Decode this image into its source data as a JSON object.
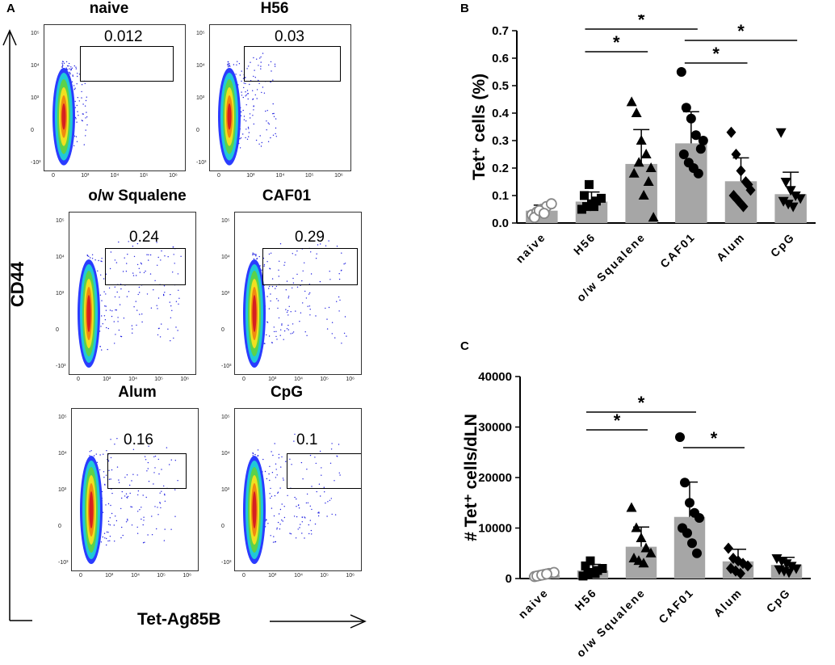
{
  "panel_a": {
    "letter": "A",
    "y_axis_label": "CD44",
    "x_axis_label": "Tet-Ag85B",
    "plots": [
      {
        "title": "naive",
        "gate_value": "0.012"
      },
      {
        "title": "H56",
        "gate_value": "0.03"
      },
      {
        "title": "o/w Squalene",
        "gate_value": "0.24"
      },
      {
        "title": "CAF01",
        "gate_value": "0.29"
      },
      {
        "title": "Alum",
        "gate_value": "0.16"
      },
      {
        "title": "CpG",
        "gate_value": "0.1"
      }
    ],
    "ticks_y": [
      "10⁵",
      "10⁴",
      "10³",
      "0",
      "-10³"
    ],
    "ticks_x": [
      "0",
      "10³",
      "10⁴",
      "10⁵",
      "10⁶"
    ]
  },
  "colors": {
    "bar": "#a6a6a6",
    "density_hot": "#d62020",
    "density_cold": "#2020e0"
  },
  "chart_data": [
    {
      "letter": "B",
      "type": "bar",
      "ylabel": "Tet⁺ cells (%)",
      "ylim": [
        0,
        0.7
      ],
      "yticks": [
        "0.0",
        "0.1",
        "0.2",
        "0.3",
        "0.4",
        "0.5",
        "0.6",
        "0.7"
      ],
      "categories": [
        "naive",
        "H56",
        "o/w Squalene",
        "CAF01",
        "Alum",
        "CpG"
      ],
      "means": [
        0.045,
        0.078,
        0.215,
        0.29,
        0.152,
        0.105
      ],
      "sd": [
        0.02,
        0.035,
        0.125,
        0.115,
        0.085,
        0.08
      ],
      "markers": [
        "circle-open",
        "square",
        "triangle",
        "circle",
        "diamond",
        "triangle-down"
      ],
      "points": [
        [
          0.03,
          0.04,
          0.05,
          0.06,
          0.07,
          0.02,
          0.045,
          0.035
        ],
        [
          0.05,
          0.06,
          0.07,
          0.08,
          0.09,
          0.1,
          0.14,
          0.06
        ],
        [
          0.44,
          0.4,
          0.3,
          0.25,
          0.2,
          0.18,
          0.22,
          0.1,
          0.15,
          0.02
        ],
        [
          0.55,
          0.42,
          0.38,
          0.32,
          0.27,
          0.25,
          0.22,
          0.2,
          0.18,
          0.3
        ],
        [
          0.33,
          0.25,
          0.19,
          0.15,
          0.12,
          0.1,
          0.08,
          0.06,
          0.14
        ],
        [
          0.33,
          0.15,
          0.12,
          0.1,
          0.09,
          0.08,
          0.07,
          0.06
        ]
      ],
      "significance": [
        {
          "from": 1,
          "to": 2,
          "level": 1,
          "label": "*"
        },
        {
          "from": 1,
          "to": 3,
          "level": 3,
          "label": "*"
        },
        {
          "from": 3,
          "to": 4,
          "level": 0,
          "label": "*"
        },
        {
          "from": 3,
          "to": 5,
          "level": 2,
          "label": "*"
        }
      ]
    },
    {
      "letter": "C",
      "type": "bar",
      "ylabel": "# Tet⁺ cells/dLN",
      "ylim": [
        0,
        40000
      ],
      "yticks": [
        "0",
        "10000",
        "20000",
        "30000",
        "40000"
      ],
      "categories": [
        "naive",
        "H56",
        "o/w Squalene",
        "CAF01",
        "Alum",
        "CpG"
      ],
      "means": [
        700,
        1600,
        6300,
        12200,
        3400,
        2700
      ],
      "sd": [
        300,
        1200,
        3900,
        6900,
        2400,
        1500
      ],
      "markers": [
        "circle-open",
        "square",
        "triangle",
        "circle",
        "diamond",
        "triangle-down"
      ],
      "points": [
        [
          400,
          600,
          800,
          1000,
          1200,
          500,
          700,
          900
        ],
        [
          500,
          800,
          1200,
          1600,
          2000,
          2500,
          3500,
          1000
        ],
        [
          14000,
          10000,
          8000,
          6000,
          5000,
          4000,
          3500,
          3000
        ],
        [
          28000,
          19000,
          15000,
          13000,
          12000,
          10000,
          9000,
          7000,
          5000
        ],
        [
          6000,
          4000,
          3500,
          3000,
          2500,
          2000,
          1500,
          1000
        ],
        [
          4000,
          3500,
          3000,
          2500,
          2000,
          1800,
          1500,
          1200
        ]
      ],
      "significance": [
        {
          "from": 1,
          "to": 2,
          "level": 1,
          "label": "*"
        },
        {
          "from": 1,
          "to": 3,
          "level": 2,
          "label": "*"
        },
        {
          "from": 3,
          "to": 4,
          "level": 0,
          "label": "*"
        }
      ]
    }
  ]
}
